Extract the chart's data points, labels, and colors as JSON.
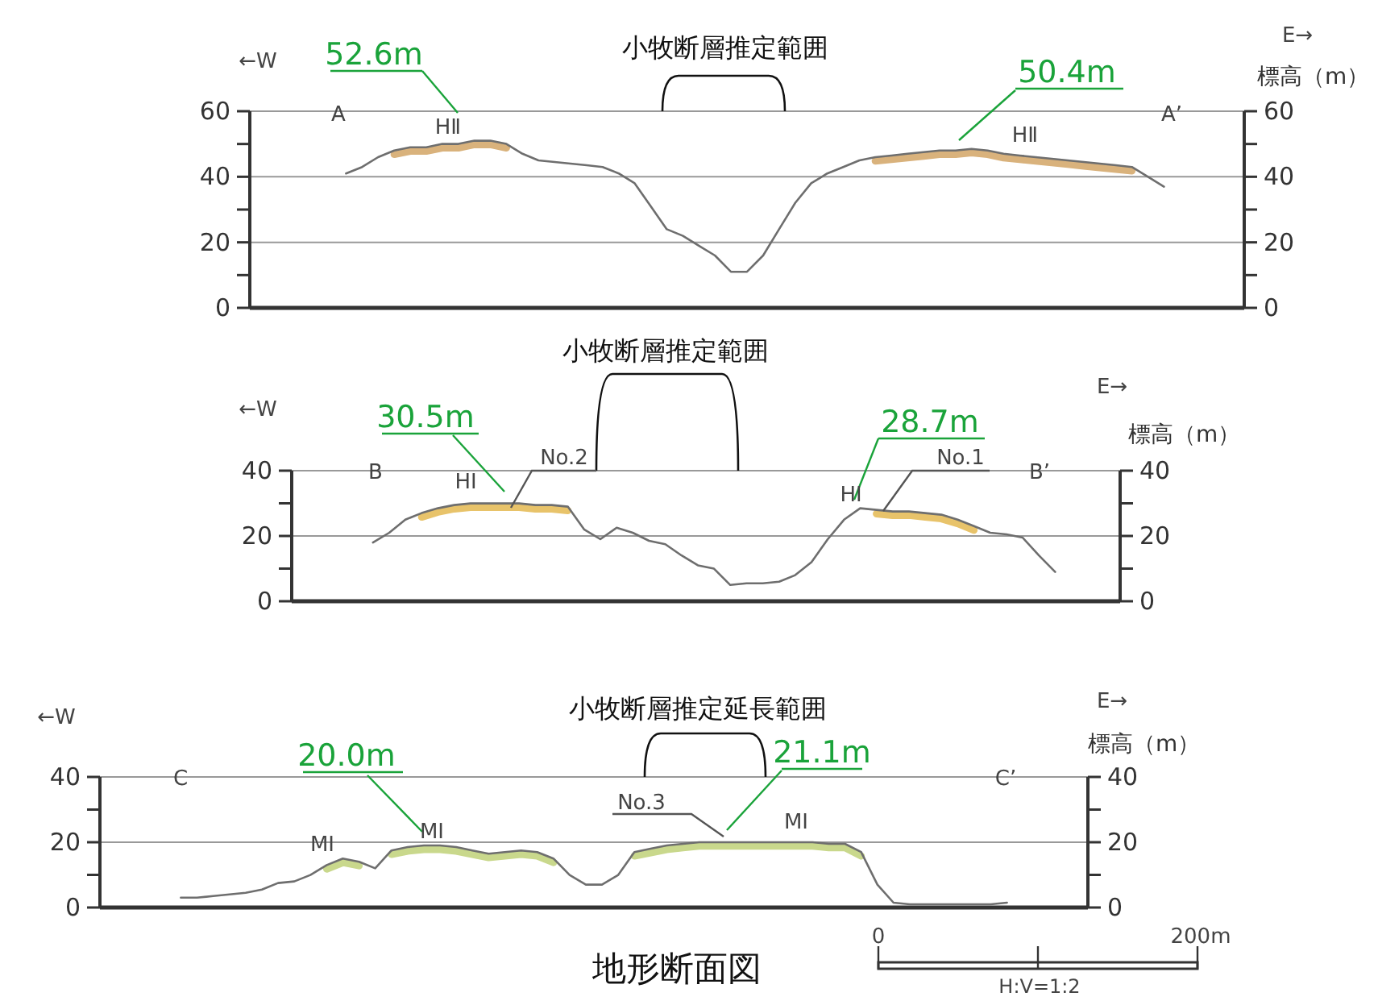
{
  "chart_data": [
    {
      "type": "line",
      "title": "小牧断層推定範囲",
      "y2label": "標高（m）",
      "grid": "y",
      "marker": "none",
      "line_style": "solid",
      "categories": [
        null,
        null,
        null,
        null,
        null,
        null,
        null,
        null,
        null,
        null,
        null,
        null,
        null,
        null,
        null,
        null,
        null,
        null,
        null,
        null,
        null,
        null,
        null,
        null,
        null,
        null,
        null,
        null,
        null,
        null,
        null,
        null,
        null,
        null,
        null,
        null,
        null,
        null,
        null,
        null,
        null,
        null,
        null,
        null,
        null,
        null,
        null,
        null,
        null,
        null,
        null,
        null,
        null,
        null,
        null,
        null,
        null,
        null,
        null,
        null,
        null,
        null,
        null
      ],
      "series": [
        {
          "color": "#d9b27c",
          "values": [
            null,
            null,
            null,
            null,
            null,
            null,
            null,
            null,
            null,
            46.8,
            47.8,
            47.8,
            48.8,
            48.8,
            49.8,
            49.8,
            48.8,
            null,
            null,
            null,
            null,
            null,
            null,
            null,
            null,
            null,
            null,
            null,
            null,
            null,
            null,
            null,
            null,
            null,
            null,
            null,
            null,
            null,
            null,
            44.8,
            45.3,
            45.8,
            46.3,
            46.8,
            46.8,
            47.3,
            46.8,
            45.8,
            45.3,
            44.8,
            44.3,
            43.8,
            43.3,
            42.8,
            42.3,
            41.8,
            null,
            null,
            null,
            null,
            null,
            null,
            null
          ]
        },
        {
          "color": "#6e6e6e",
          "values": [
            null,
            null,
            null,
            null,
            null,
            null,
            41,
            43,
            46,
            48,
            49,
            49,
            50,
            50,
            51,
            51,
            50,
            47,
            45,
            44.5,
            44,
            43.5,
            43,
            41,
            38,
            31,
            24,
            22,
            19,
            16,
            11,
            11,
            16,
            24,
            32,
            38,
            41,
            43,
            45,
            46,
            46.5,
            47,
            47.5,
            48,
            48,
            48.5,
            48,
            47,
            46.5,
            46,
            45.5,
            45,
            44.5,
            44,
            43.5,
            43,
            40,
            37,
            null,
            null,
            null,
            null,
            null
          ]
        }
      ],
      "ylim": [
        0,
        60
      ],
      "yticks": [
        0,
        {
          "value": 10,
          "label": null
        },
        20,
        {
          "value": 30,
          "label": null
        },
        40,
        {
          "value": 50,
          "label": null
        },
        60
      ],
      "y2lim": [
        0,
        60
      ],
      "y2ticks": [
        0,
        {
          "value": 10,
          "label": null
        },
        20,
        {
          "value": 30,
          "label": null
        },
        40,
        {
          "value": 50,
          "label": null
        },
        60
      ],
      "annotations": [
        "52.6m",
        "50.4m",
        "A",
        "A’",
        "HⅡ",
        "HⅡ",
        "←W",
        "E→"
      ]
    },
    {
      "type": "line",
      "title": "小牧断層推定範囲",
      "y2label": "標高（m）",
      "grid": "y",
      "marker": "none",
      "line_style": "solid",
      "categories": [
        null,
        null,
        null,
        null,
        null,
        null,
        null,
        null,
        null,
        null,
        null,
        null,
        null,
        null,
        null,
        null,
        null,
        null,
        null,
        null,
        null,
        null,
        null,
        null,
        null,
        null,
        null,
        null,
        null,
        null,
        null,
        null,
        null,
        null,
        null,
        null,
        null,
        null,
        null,
        null,
        null,
        null,
        null,
        null,
        null,
        null,
        null,
        null,
        null,
        null,
        null,
        null
      ],
      "series": [
        {
          "color": "#e8c36a",
          "values": [
            null,
            null,
            null,
            null,
            null,
            null,
            null,
            null,
            25.8,
            27.3,
            28.3,
            28.8,
            28.8,
            28.8,
            28.8,
            28.3,
            28.3,
            27.8,
            null,
            null,
            null,
            null,
            null,
            null,
            null,
            null,
            null,
            null,
            null,
            null,
            null,
            null,
            null,
            null,
            null,
            null,
            26.8,
            26.3,
            26.3,
            25.8,
            25.3,
            23.8,
            21.8,
            null,
            null,
            null,
            null,
            null,
            null,
            null,
            null,
            null
          ]
        },
        {
          "color": "#6e6e6e",
          "values": [
            null,
            null,
            null,
            null,
            null,
            18,
            21,
            25,
            27,
            28.5,
            29.5,
            30,
            30,
            30,
            30,
            29.5,
            29.5,
            29,
            22,
            19,
            22.5,
            21,
            18.5,
            17.5,
            14,
            11,
            10,
            5,
            5.5,
            5.5,
            6,
            8,
            12,
            19,
            25,
            28.5,
            28,
            27.5,
            27.5,
            27,
            26.5,
            25,
            23,
            21,
            20.5,
            19.5,
            14,
            9,
            null,
            null,
            null,
            null
          ]
        }
      ],
      "ylim": [
        0,
        40
      ],
      "yticks": [
        0,
        {
          "value": 10,
          "label": null
        },
        20,
        {
          "value": 30,
          "label": null
        },
        40
      ],
      "y2lim": [
        0,
        40
      ],
      "y2ticks": [
        0,
        {
          "value": 10,
          "label": null
        },
        20,
        {
          "value": 30,
          "label": null
        },
        40
      ],
      "annotations": [
        "30.5m",
        "28.7m",
        "No.2",
        "No.1",
        "B",
        "B’",
        "HⅠ",
        "HⅠ",
        "←W",
        "E→"
      ]
    },
    {
      "type": "line",
      "title": "小牧断層推定延長範囲",
      "y2label": "標高（m）",
      "grid": "y",
      "marker": "none",
      "line_style": "solid",
      "categories": [
        null,
        null,
        null,
        null,
        null,
        null,
        null,
        null,
        null,
        null,
        null,
        null,
        null,
        null,
        null,
        null,
        null,
        null,
        null,
        null,
        null,
        null,
        null,
        null,
        null,
        null,
        null,
        null,
        null,
        null,
        null,
        null,
        null,
        null,
        null,
        null,
        null,
        null,
        null,
        null,
        null,
        null,
        null,
        null,
        null,
        null,
        null,
        null,
        null,
        null,
        null,
        null,
        null,
        null,
        null,
        null,
        null,
        null,
        null,
        null,
        null,
        null
      ],
      "series": [
        {
          "color": "#c9d88c",
          "values": [
            null,
            null,
            null,
            null,
            null,
            null,
            null,
            null,
            null,
            null,
            null,
            null,
            null,
            null,
            11.8,
            13.8,
            12.8,
            null,
            16.3,
            17.3,
            17.8,
            17.8,
            17.3,
            16.3,
            15.3,
            15.8,
            16.3,
            15.8,
            13.8,
            null,
            null,
            null,
            null,
            15.8,
            16.8,
            17.8,
            18.3,
            18.8,
            18.8,
            18.8,
            18.8,
            18.8,
            18.8,
            18.8,
            18.8,
            18.3,
            18.3,
            15.8,
            null,
            null,
            null,
            null,
            null,
            null,
            null,
            null,
            null,
            null,
            null,
            null,
            null,
            null
          ]
        },
        {
          "color": "#6e6e6e",
          "values": [
            null,
            null,
            null,
            null,
            null,
            3,
            3,
            3.5,
            4,
            4.5,
            5.5,
            7.5,
            8,
            10,
            13,
            15,
            14,
            12,
            17.5,
            18.5,
            19,
            19,
            18.5,
            17.5,
            16.5,
            17,
            17.5,
            17,
            15,
            10,
            7,
            7,
            10,
            17,
            18,
            19,
            19.5,
            20,
            20,
            20,
            20,
            20,
            20,
            20,
            20,
            19.5,
            19.5,
            17,
            7,
            1.5,
            1,
            1,
            1,
            1,
            1,
            1,
            1.5,
            null,
            null,
            null,
            null,
            null
          ]
        }
      ],
      "ylim": [
        0,
        40
      ],
      "yticks": [
        0,
        {
          "value": 10,
          "label": null
        },
        20,
        {
          "value": 30,
          "label": null
        },
        40
      ],
      "y2lim": [
        0,
        40
      ],
      "y2ticks": [
        0,
        {
          "value": 10,
          "label": null
        },
        20,
        {
          "value": 30,
          "label": null
        },
        40
      ],
      "annotations": [
        "20.0m",
        "21.1m",
        "No.3",
        "C",
        "C’",
        "MⅠ",
        "MⅠ",
        "MⅠ",
        "←W",
        "E→",
        "0",
        "200m",
        "H:V=1:2",
        "地形断面図"
      ]
    }
  ]
}
